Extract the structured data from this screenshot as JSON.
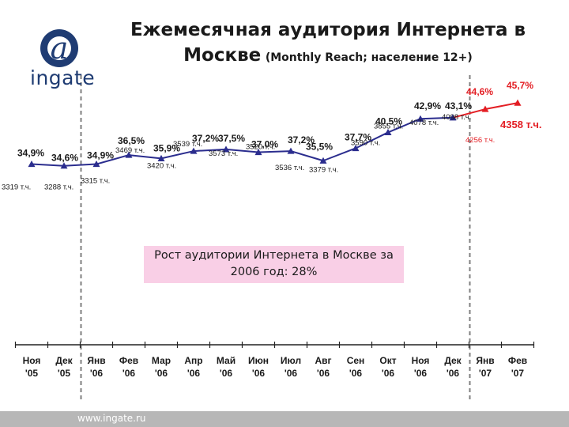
{
  "header": {
    "title_line1": "Ежемесячная аудитория Интернета в",
    "title_line2": "Москве",
    "title_suffix": "(Monthly Reach; население 12+)"
  },
  "logo": {
    "text": "ingate",
    "mark_icon": "at-sign-icon"
  },
  "callout": {
    "line1": "Рост аудитории Интернета в Москве за",
    "line2": "2006 год: 28%"
  },
  "footer": {
    "url": "www.ingate.ru"
  },
  "colors": {
    "series_main": "#2b2d8e",
    "series_highlight": "#e31e24",
    "brand": "#1f3c73",
    "callout_bg": "#f9cfe6",
    "footer_bg": "#b7b7b7"
  },
  "chart_data": {
    "type": "line",
    "categories": [
      {
        "m": "Ноя",
        "y": "'05"
      },
      {
        "m": "Дек",
        "y": "'05"
      },
      {
        "m": "Янв",
        "y": "'06"
      },
      {
        "m": "Фев",
        "y": "'06"
      },
      {
        "m": "Мар",
        "y": "'06"
      },
      {
        "m": "Апр",
        "y": "'06"
      },
      {
        "m": "Май",
        "y": "'06"
      },
      {
        "m": "Июн",
        "y": "'06"
      },
      {
        "m": "Июл",
        "y": "'06"
      },
      {
        "m": "Авг",
        "y": "'06"
      },
      {
        "m": "Сен",
        "y": "'06"
      },
      {
        "m": "Окт",
        "y": "'06"
      },
      {
        "m": "Ноя",
        "y": "'06"
      },
      {
        "m": "Дек",
        "y": "'06"
      },
      {
        "m": "Янв",
        "y": "'07"
      },
      {
        "m": "Фев",
        "y": "'07"
      }
    ],
    "series": [
      {
        "reach_pct": [
          34.9,
          34.6,
          34.9,
          36.5,
          35.9,
          37.2,
          37.5,
          37.0,
          37.2,
          35.5,
          37.7,
          40.5,
          42.9,
          43.1,
          44.6,
          45.7
        ],
        "reach_labels": [
          "34,9%",
          "34,6%",
          "34,9%",
          "36,5%",
          "35,9%",
          "37,2%",
          "37,5%",
          "37,0%",
          "37,2%",
          "35,5%",
          "37,7%",
          "40,5%",
          "42,9%",
          "43,1%",
          "44,6%",
          "45,7%"
        ],
        "audience_thousands": [
          3319,
          3288,
          3315,
          3469,
          3420,
          3539,
          3573,
          3520,
          3536,
          3379,
          3590,
          3855,
          4078,
          4098,
          4256,
          4358
        ],
        "audience_labels": [
          "3319 т.ч.",
          "3288 т.ч.",
          "3315 т.ч.",
          "3469 т.ч.",
          "3420 т.ч.",
          "3539 т.ч.",
          "3573 т.ч.",
          "3520 т.ч.",
          "3536 т.ч.",
          "3379 т.ч.",
          "3590 т.ч.",
          "3855 т.ч.",
          "4078 т.ч.",
          "4098 т.ч.",
          "4256 т.ч.",
          "4358 т.ч."
        ]
      }
    ],
    "highlight_from_index": 14,
    "dashed_separators_after": [
      "Дек '05",
      "Дек '06"
    ],
    "title": "",
    "xlabel": "",
    "ylabel": "",
    "ylim": [
      34,
      46
    ],
    "grid": false,
    "legend": "none"
  }
}
